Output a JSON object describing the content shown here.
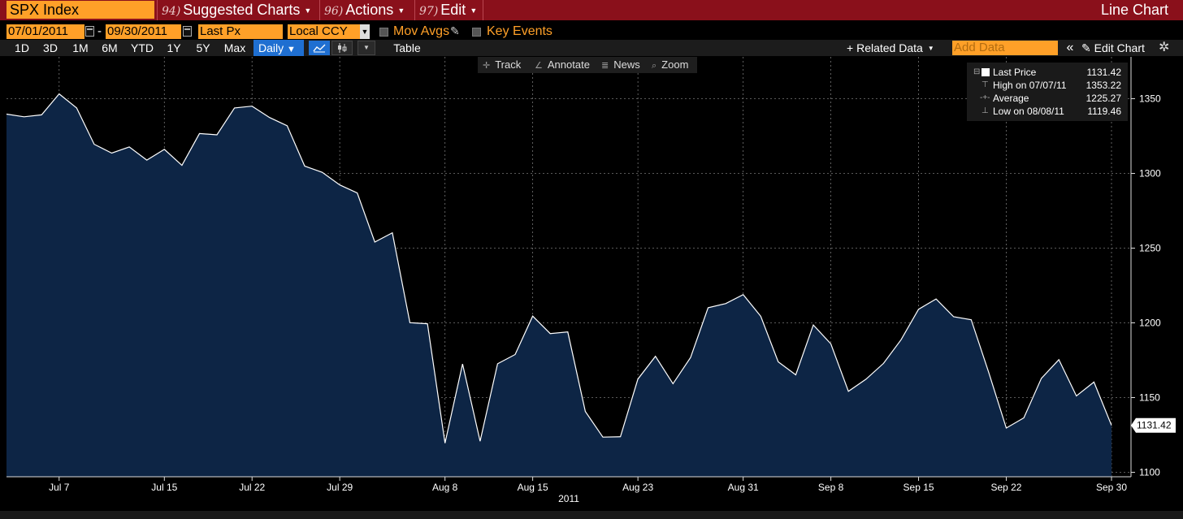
{
  "titlebar": {
    "ticker": "SPX Index",
    "menus": [
      {
        "num": "94)",
        "label": "Suggested Charts"
      },
      {
        "num": "96)",
        "label": "Actions"
      },
      {
        "num": "97)",
        "label": "Edit"
      }
    ],
    "chart_type": "Line Chart"
  },
  "controls": {
    "start_date": "07/01/2011",
    "end_date": "09/30/2011",
    "date_sep": "-",
    "field": "Last Px",
    "currency": "Local CCY",
    "mov_avgs": "Mov Avgs",
    "key_events": "Key Events"
  },
  "periods": [
    "1D",
    "3D",
    "1M",
    "6M",
    "YTD",
    "1Y",
    "5Y",
    "Max"
  ],
  "frequency": "Daily",
  "table_label": "Table",
  "related_data": "Related Data",
  "add_data_placeholder": "Add Data",
  "edit_chart": "Edit Chart",
  "tools": [
    "Track",
    "Annotate",
    "News",
    "Zoom"
  ],
  "legend": [
    {
      "label": "Last Price",
      "value": "1131.42"
    },
    {
      "label": "High on 07/07/11",
      "value": "1353.22"
    },
    {
      "label": "Average",
      "value": "1225.27"
    },
    {
      "label": "Low on 08/08/11",
      "value": "1119.46"
    }
  ],
  "last_value_tag": "1131.42",
  "colors": {
    "titlebar": "#8a101b",
    "accent": "#ffa028",
    "area_fill": "#0d2545",
    "line": "#ffffff"
  },
  "chart_data": {
    "type": "area",
    "x_tick_labels": [
      "Jul 7",
      "Jul 15",
      "Jul 22",
      "Jul 29",
      "Aug 8",
      "Aug 15",
      "Aug 23",
      "Aug 31",
      "Sep 8",
      "Sep 15",
      "Sep 22",
      "Sep 30"
    ],
    "x_axis_year": "2011",
    "y_ticks": [
      1100,
      1150,
      1200,
      1250,
      1300,
      1350
    ],
    "ylim": [
      1097,
      1378
    ],
    "x": [
      "07/01",
      "07/05",
      "07/06",
      "07/07",
      "07/08",
      "07/11",
      "07/12",
      "07/13",
      "07/14",
      "07/15",
      "07/18",
      "07/19",
      "07/20",
      "07/21",
      "07/22",
      "07/25",
      "07/26",
      "07/27",
      "07/28",
      "07/29",
      "08/01",
      "08/02",
      "08/03",
      "08/04",
      "08/05",
      "08/08",
      "08/09",
      "08/10",
      "08/11",
      "08/12",
      "08/15",
      "08/16",
      "08/17",
      "08/18",
      "08/19",
      "08/22",
      "08/23",
      "08/24",
      "08/25",
      "08/26",
      "08/29",
      "08/30",
      "08/31",
      "09/01",
      "09/02",
      "09/06",
      "09/07",
      "09/08",
      "09/09",
      "09/12",
      "09/13",
      "09/14",
      "09/15",
      "09/16",
      "09/19",
      "09/20",
      "09/21",
      "09/22",
      "09/23",
      "09/26",
      "09/27",
      "09/28",
      "09/29",
      "09/30"
    ],
    "values": [
      1339.7,
      1337.9,
      1339.2,
      1353.2,
      1343.8,
      1319.5,
      1313.6,
      1317.7,
      1308.9,
      1316.1,
      1305.4,
      1326.7,
      1325.8,
      1343.8,
      1345.0,
      1337.4,
      1331.9,
      1304.9,
      1300.7,
      1292.3,
      1286.9,
      1254.1,
      1260.3,
      1200.1,
      1199.4,
      1119.5,
      1172.5,
      1120.8,
      1172.6,
      1178.8,
      1204.5,
      1192.8,
      1193.9,
      1140.7,
      1123.5,
      1123.8,
      1162.4,
      1177.6,
      1159.3,
      1176.8,
      1210.1,
      1212.9,
      1218.9,
      1204.4,
      1173.9,
      1165.2,
      1198.6,
      1185.9,
      1154.2,
      1162.3,
      1172.9,
      1188.7,
      1209.1,
      1216.0,
      1204.1,
      1202.1,
      1166.8,
      1129.6,
      1136.4,
      1162.9,
      1175.4,
      1151.1,
      1160.4,
      1131.4
    ],
    "legend_position": "top-right",
    "grid": true
  }
}
